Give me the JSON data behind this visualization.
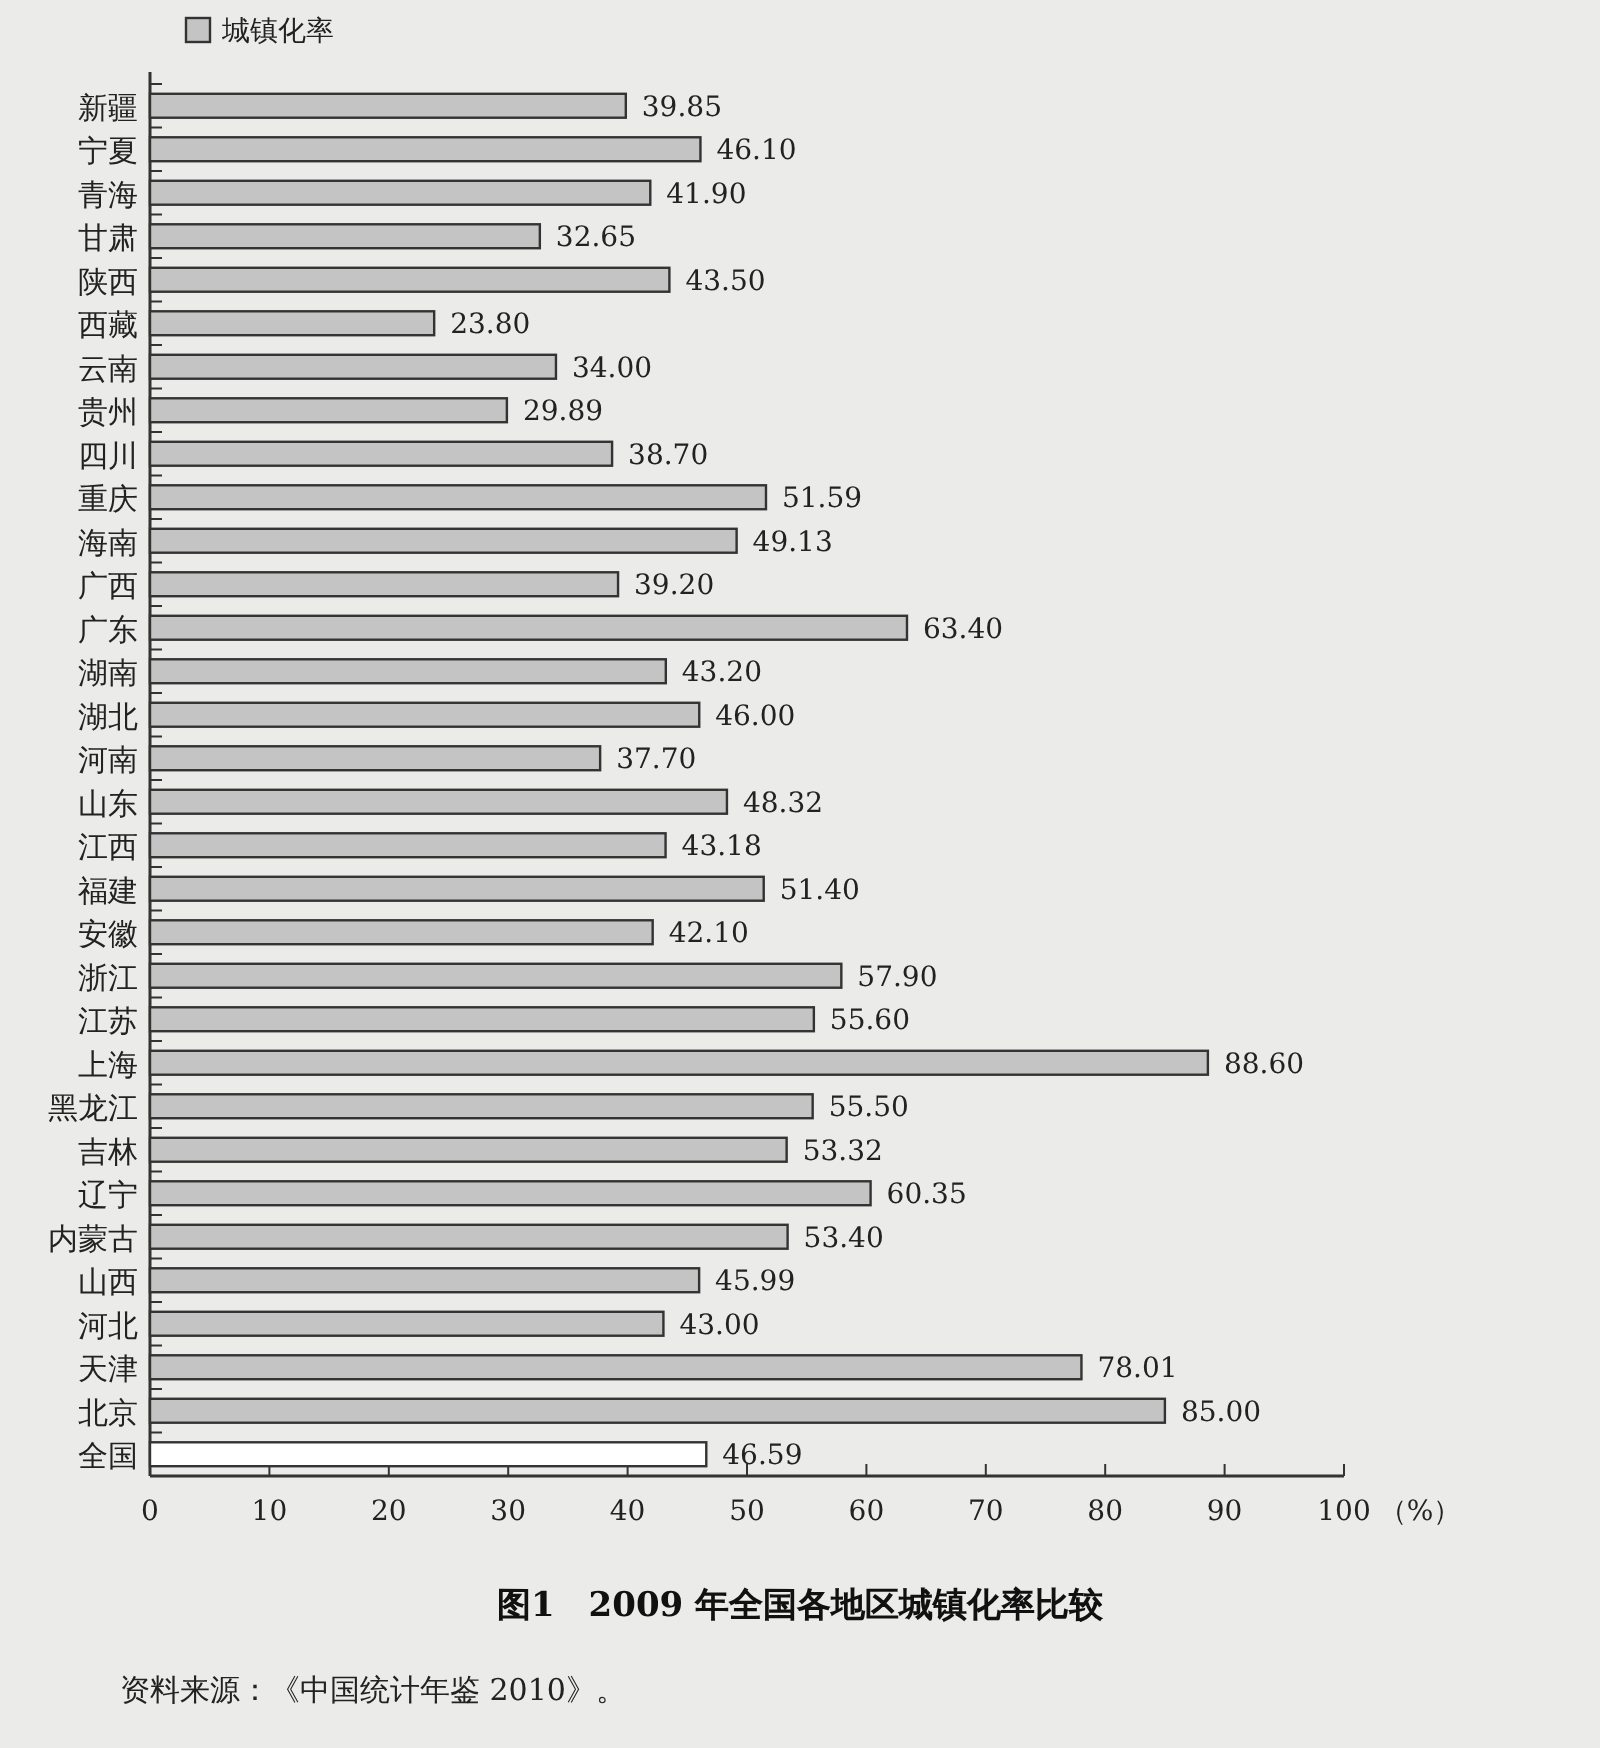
{
  "chart_data": {
    "type": "bar",
    "orientation": "horizontal",
    "title": "图1　2009 年全国各地区城镇化率比较",
    "xlabel": "（%）",
    "annotations": [
      "资料来源：《中国统计年鉴 2010》。"
    ],
    "categories": [
      "新疆",
      "宁夏",
      "青海",
      "甘肃",
      "陕西",
      "西藏",
      "云南",
      "贵州",
      "四川",
      "重庆",
      "海南",
      "广西",
      "广东",
      "湖南",
      "湖北",
      "河南",
      "山东",
      "江西",
      "福建",
      "安徽",
      "浙江",
      "江苏",
      "上海",
      "黑龙江",
      "吉林",
      "辽宁",
      "内蒙古",
      "山西",
      "河北",
      "天津",
      "北京",
      "全国"
    ],
    "series": [
      {
        "name": "城镇化率",
        "color": "#c4c4c4",
        "colors": [
          "#c4c4c4",
          "#c4c4c4",
          "#c4c4c4",
          "#c4c4c4",
          "#c4c4c4",
          "#c4c4c4",
          "#c4c4c4",
          "#c4c4c4",
          "#c4c4c4",
          "#c4c4c4",
          "#c4c4c4",
          "#c4c4c4",
          "#c4c4c4",
          "#c4c4c4",
          "#c4c4c4",
          "#c4c4c4",
          "#c4c4c4",
          "#c4c4c4",
          "#c4c4c4",
          "#c4c4c4",
          "#c4c4c4",
          "#c4c4c4",
          "#c4c4c4",
          "#c4c4c4",
          "#c4c4c4",
          "#c4c4c4",
          "#c4c4c4",
          "#c4c4c4",
          "#c4c4c4",
          "#c4c4c4",
          "#c4c4c4",
          "#ffffff"
        ],
        "values": [
          39.85,
          46.1,
          41.9,
          32.65,
          43.5,
          23.8,
          34.0,
          29.89,
          38.7,
          51.59,
          49.13,
          39.2,
          63.4,
          43.2,
          46.0,
          37.7,
          48.32,
          43.18,
          51.4,
          42.1,
          57.9,
          55.6,
          88.6,
          55.5,
          53.32,
          60.35,
          53.4,
          45.99,
          43.0,
          78.01,
          85.0,
          46.59
        ],
        "value_labels": [
          "39.85",
          "46.10",
          "41.90",
          "32.65",
          "43.50",
          "23.80",
          "34.00",
          "29.89",
          "38.70",
          "51.59",
          "49.13",
          "39.20",
          "63.40",
          "43.20",
          "46.00",
          "37.70",
          "48.32",
          "43.18",
          "51.40",
          "42.10",
          "57.90",
          "55.60",
          "88.60",
          "55.50",
          "53.32",
          "60.35",
          "53.40",
          "45.99",
          "43.00",
          "78.01",
          "85.00",
          "46.59"
        ]
      }
    ],
    "xlim": [
      0,
      100
    ],
    "xticks": [
      0,
      10,
      20,
      30,
      40,
      50,
      60,
      70,
      80,
      90,
      100
    ],
    "legend": "top left"
  }
}
